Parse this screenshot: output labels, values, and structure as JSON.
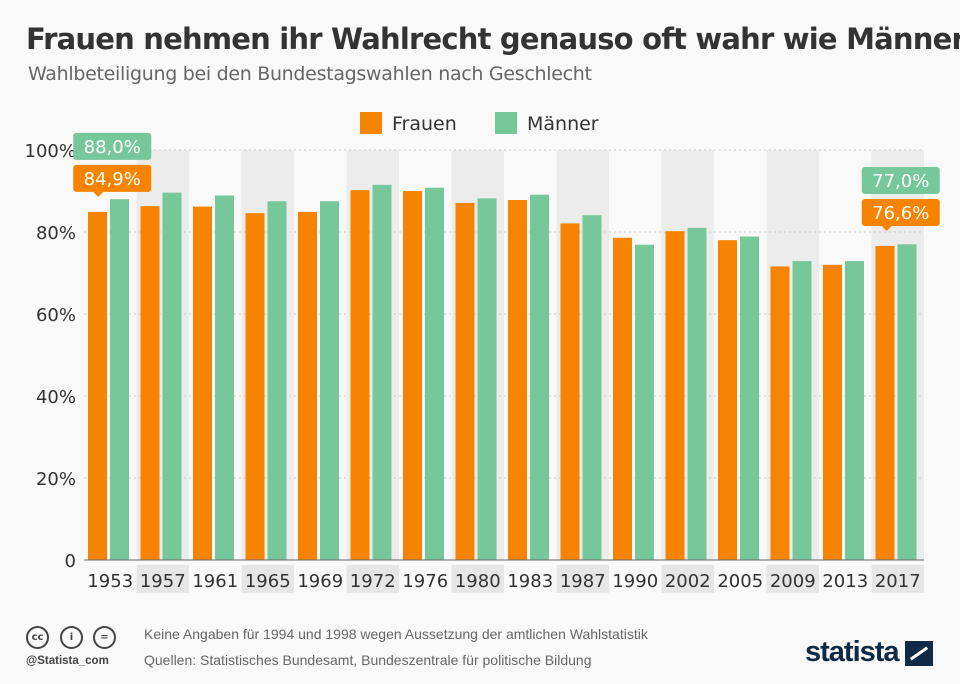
{
  "title": "Frauen nehmen ihr Wahlrecht genauso oft wahr wie Männer",
  "subtitle": "Wahlbeteiligung bei den Bundestagswahlen nach Geschlecht",
  "colors": {
    "frauen": "#f78400",
    "maenner": "#76c799",
    "shade": "#ececec"
  },
  "chart_data": {
    "type": "bar",
    "categories": [
      "1953",
      "1957",
      "1961",
      "1965",
      "1969",
      "1972",
      "1976",
      "1980",
      "1983",
      "1987",
      "1990",
      "2002",
      "2005",
      "2009",
      "2013",
      "2017"
    ],
    "series": [
      {
        "name": "Frauen",
        "values": [
          84.9,
          86.3,
          86.2,
          84.6,
          84.9,
          90.2,
          90.0,
          87.1,
          87.8,
          82.1,
          78.6,
          80.2,
          78.0,
          71.6,
          72.0,
          76.6
        ]
      },
      {
        "name": "Männer",
        "values": [
          88.0,
          89.6,
          88.9,
          87.5,
          87.5,
          91.5,
          90.8,
          88.2,
          89.1,
          84.1,
          76.9,
          81.0,
          78.9,
          72.9,
          72.9,
          77.0
        ]
      }
    ],
    "ylim": [
      0,
      100
    ],
    "yticks": [
      "0",
      "20%",
      "40%",
      "60%",
      "80%",
      "100%"
    ],
    "legend": "top-center",
    "data_labels": [
      {
        "category": "1953",
        "series": "Frauen",
        "text": "84,9%"
      },
      {
        "category": "1953",
        "series": "Männer",
        "text": "88,0%"
      },
      {
        "category": "2017",
        "series": "Frauen",
        "text": "76,6%"
      },
      {
        "category": "2017",
        "series": "Männer",
        "text": "77,0%"
      }
    ]
  },
  "footer": {
    "note": "Keine Angaben für 1994 und 1998 wegen Aussetzung der amtlichen Wahlstatistik",
    "sources": "Quellen: Statistisches Bundesamt, Bundeszentrale für politische Bildung",
    "handle": "@Statista_com",
    "logo": "statista"
  }
}
